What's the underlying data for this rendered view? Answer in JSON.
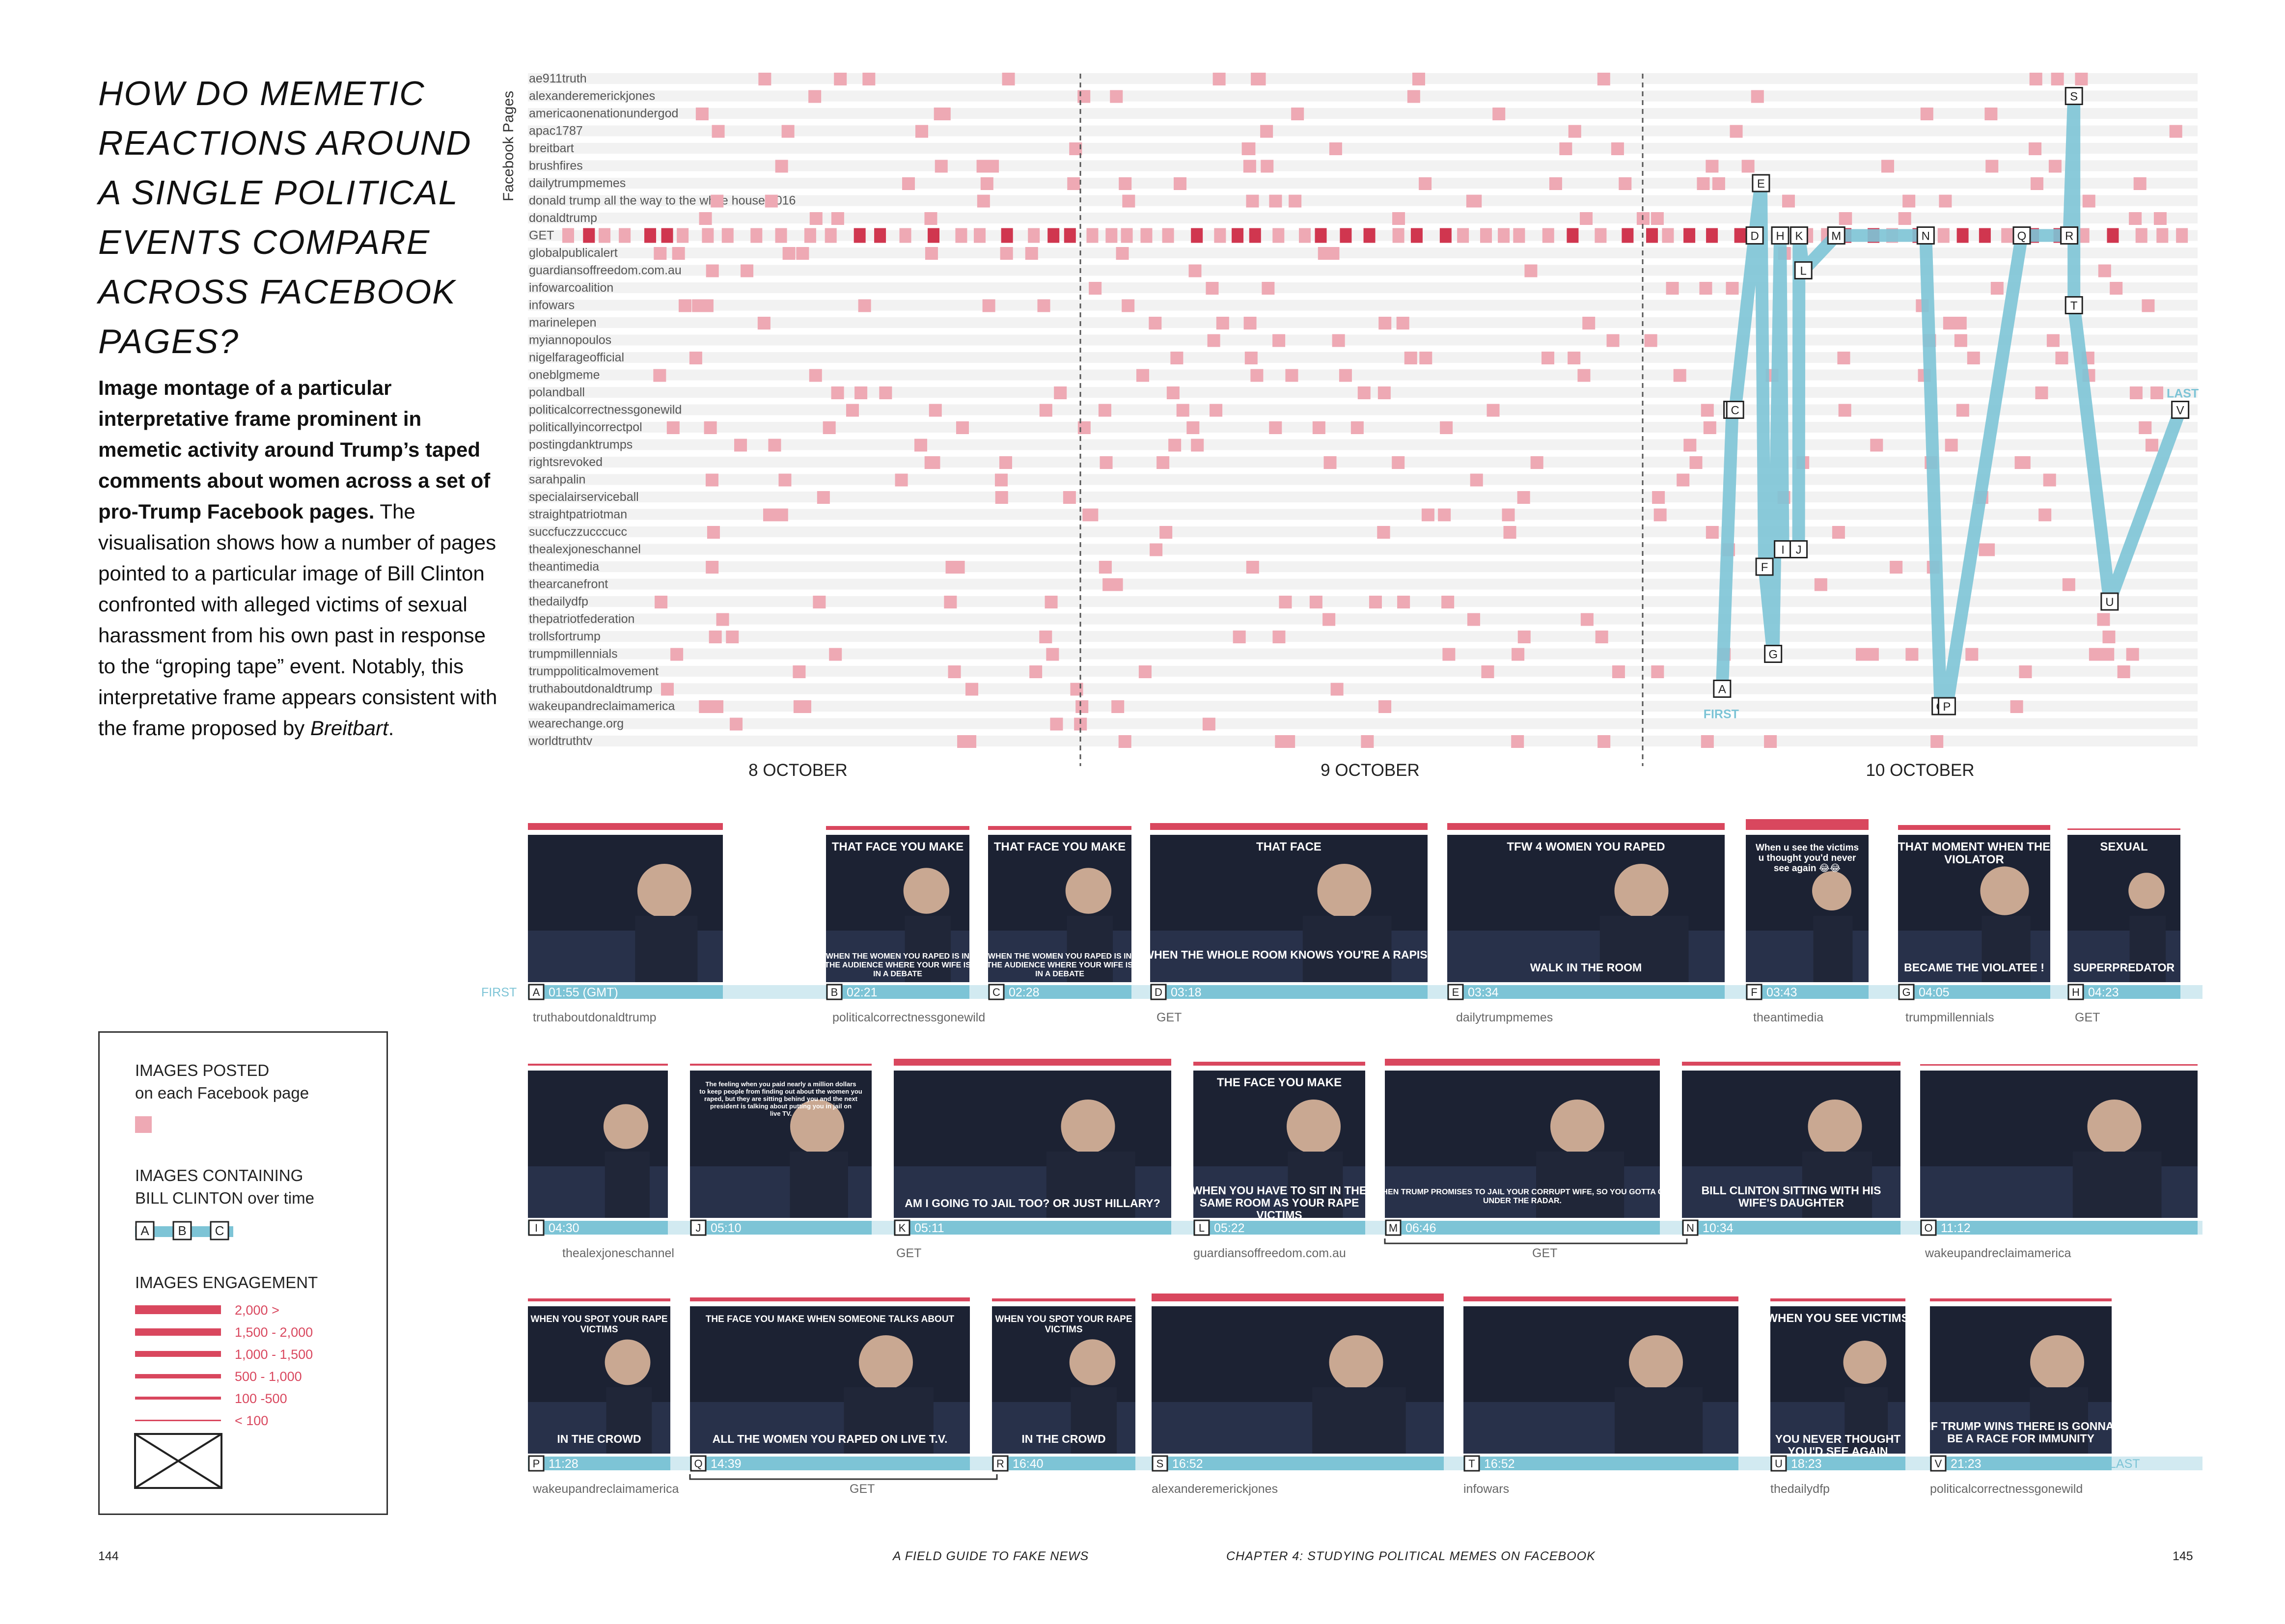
{
  "title": "HOW DO MEMETIC REACTIONS AROUND A SINGLE POLITICAL EVENTS COMPARE ACROSS FACEBOOK PAGES?",
  "description": {
    "bold": "Image montage of a particular interpretative frame prominent in memetic activity around Trump’s taped comments about women across a set of pro-Trump Facebook pages.",
    "text1": " The visualisation shows how a number of pages pointed to a particular image of Bill Clinton confronted with alleged victims of sexual harassment from his own past in response to the “groping tape” event. Notably, this interpretative frame appears consistent with the frame proposed by ",
    "italic": "Breitbart",
    "end": "."
  },
  "chart": {
    "y_axis_label": "Facebook Pages",
    "date_labels": [
      "8 OCTOBER",
      "9 OCTOBER",
      "10 OCTOBER"
    ],
    "first_label": "FIRST",
    "last_label": "LAST",
    "pages": [
      "ae911truth",
      "alexanderemerickjones",
      "americaonenationundergod",
      "apac1787",
      "breitbart",
      "brushfires",
      "dailytrumpmemes",
      "donald trump all the way to the white house 2016",
      "donaldtrump",
      "GET",
      "globalpublicalert",
      "guardiansoffreedom.com.au",
      "infowarcoalition",
      "infowars",
      "marinelepen",
      "myiannopoulos",
      "nigelfarageofficial",
      "oneblgmeme",
      "polandball",
      "politicalcorrectnessgonewild",
      "politicallyincorrectpol",
      "postingdanktrumps",
      "rightsrevoked",
      "sarahpalin",
      "specialairserviceball",
      "straightpatriotman",
      "succfuczzucccucc",
      "thealexjoneschannel",
      "theantimedia",
      "thearcanefront",
      "thedailydfp",
      "thepatriotfederation",
      "trollsfortrump",
      "trumpmillennials",
      "trumppoliticalmovement",
      "truthaboutdonaldtrump",
      "wakeupandreclaimamerica",
      "wearechange.org",
      "worldtruthtv"
    ],
    "markers": [
      {
        "id": "A",
        "page": "truthaboutdonaldtrump"
      },
      {
        "id": "B",
        "page": "politicalcorrectnessgonewild"
      },
      {
        "id": "C",
        "page": "politicalcorrectnessgonewild"
      },
      {
        "id": "D",
        "page": "GET"
      },
      {
        "id": "E",
        "page": "dailytrumpmemes"
      },
      {
        "id": "F",
        "page": "theantimedia"
      },
      {
        "id": "G",
        "page": "trumpmillennials"
      },
      {
        "id": "H",
        "page": "GET"
      },
      {
        "id": "I",
        "page": "thealexjoneschannel"
      },
      {
        "id": "J",
        "page": "thealexjoneschannel"
      },
      {
        "id": "K",
        "page": "GET"
      },
      {
        "id": "L",
        "page": "guardiansoffreedom.com.au"
      },
      {
        "id": "M",
        "page": "GET"
      },
      {
        "id": "N",
        "page": "GET"
      },
      {
        "id": "O",
        "page": "wakeupandreclaimamerica"
      },
      {
        "id": "P",
        "page": "wakeupandreclaimamerica"
      },
      {
        "id": "Q",
        "page": "GET"
      },
      {
        "id": "R",
        "page": "GET"
      },
      {
        "id": "S",
        "page": "alexanderemerickjones"
      },
      {
        "id": "T",
        "page": "infowars"
      },
      {
        "id": "U",
        "page": "thedailydfp"
      },
      {
        "id": "V",
        "page": "politicalcorrectnessgonewild"
      }
    ]
  },
  "montage": {
    "first_label": "FIRST",
    "last_label": "LAST",
    "rows": [
      {
        "images": [
          {
            "id": "A",
            "time": "01:55 (GMT)",
            "caption_top": "",
            "caption_bottom": ""
          },
          {
            "id": "B",
            "time": "02:21",
            "caption_top": "THAT FACE YOU MAKE",
            "caption_bottom": "WHEN THE WOMEN YOU RAPED IS IN THE AUDIENCE WHERE YOUR WIFE IS IN A DEBATE"
          },
          {
            "id": "C",
            "time": "02:28",
            "caption_top": "THAT FACE YOU MAKE",
            "caption_bottom": "WHEN THE WOMEN YOU RAPED IS IN THE AUDIENCE WHERE YOUR WIFE IS IN A DEBATE"
          },
          {
            "id": "D",
            "time": "03:18",
            "caption_top": "THAT FACE",
            "caption_bottom": "WHEN THE WHOLE ROOM KNOWS YOU'RE A RAPIST"
          },
          {
            "id": "E",
            "time": "03:34",
            "caption_top": "TFW 4 WOMEN YOU RAPED",
            "caption_bottom": "WALK IN THE ROOM"
          },
          {
            "id": "F",
            "time": "03:43",
            "caption_top": "When u see the victims u thought you'd never see again 😂😂",
            "caption_bottom": ""
          },
          {
            "id": "G",
            "time": "04:05",
            "caption_top": "THAT MOMENT WHEN THE VIOLATOR",
            "caption_bottom": "BECAME THE VIOLATEE !"
          },
          {
            "id": "H",
            "time": "04:23",
            "caption_top": "SEXUAL",
            "caption_bottom": "SUPERPREDATOR"
          }
        ],
        "sources": [
          "truthaboutdonaldtrump",
          "politicalcorrectnessgonewild",
          "GET",
          "dailytrumpmemes",
          "theantimedia",
          "trumpmillennials",
          "GET"
        ]
      },
      {
        "images": [
          {
            "id": "I",
            "time": "04:30",
            "caption_top": "",
            "caption_bottom": ""
          },
          {
            "id": "J",
            "time": "05:10",
            "caption_top": "The feeling when you paid nearly a million dollars to keep people from finding out about the women you raped, but they are sitting behind you and the next president is talking about putting you in jail on live TV.",
            "caption_bottom": ""
          },
          {
            "id": "K",
            "time": "05:11",
            "caption_top": "",
            "caption_bottom": "AM I GOING TO JAIL TOO? OR JUST HILLARY?"
          },
          {
            "id": "L",
            "time": "05:22",
            "caption_top": "THE FACE YOU MAKE",
            "caption_bottom": "WHEN YOU HAVE TO SIT IN THE SAME ROOM AS YOUR RAPE VICTIMS"
          },
          {
            "id": "M",
            "time": "06:46",
            "caption_top": "",
            "caption_bottom": "WHEN TRUMP PROMISES TO JAIL YOUR CORRUPT WIFE, SO YOU GOTTA GO UNDER THE RADAR."
          },
          {
            "id": "N",
            "time": "10:34",
            "caption_top": "",
            "caption_bottom": "BILL CLINTON SITTING WITH HIS WIFE'S DAUGHTER"
          },
          {
            "id": "O",
            "time": "11:12",
            "caption_top": "",
            "caption_bottom": ""
          }
        ],
        "sources": [
          "thealexjoneschannel",
          "GET",
          "guardiansoffreedom.com.au",
          "GET",
          "wakeupandreclaimamerica"
        ]
      },
      {
        "images": [
          {
            "id": "P",
            "time": "11:28",
            "caption_top": "WHEN YOU SPOT YOUR RAPE VICTIMS",
            "caption_bottom": "IN THE CROWD"
          },
          {
            "id": "Q",
            "time": "14:39",
            "caption_top": "THE FACE YOU MAKE WHEN SOMEONE TALKS ABOUT",
            "caption_bottom": "ALL THE WOMEN YOU RAPED ON LIVE T.V."
          },
          {
            "id": "R",
            "time": "16:40",
            "caption_top": "WHEN YOU SPOT YOUR RAPE VICTIMS",
            "caption_bottom": "IN THE CROWD"
          },
          {
            "id": "S",
            "time": "16:52",
            "caption_top": "",
            "caption_bottom": ""
          },
          {
            "id": "T",
            "time": "16:52",
            "caption_top": "",
            "caption_bottom": ""
          },
          {
            "id": "U",
            "time": "18:23",
            "caption_top": "WHEN YOU SEE VICTIMS",
            "caption_bottom": "YOU NEVER THOUGHT YOU'D SEE AGAIN"
          },
          {
            "id": "V",
            "time": "21:23",
            "caption_top": "",
            "caption_bottom": "IF TRUMP WINS THERE IS GONNA BE A RACE FOR IMMUNITY"
          }
        ],
        "sources": [
          "wakeupandreclaimamerica",
          "GET",
          "alexanderemerickjones",
          "infowars",
          "thedailydfp",
          "politicalcorrectnessgonewild"
        ]
      }
    ]
  },
  "legend": {
    "posted_title": "IMAGES POSTED",
    "posted_sub": "on each Facebook page",
    "containing_title": "IMAGES CONTAINING",
    "containing_sub": "BILL CLINTON over time",
    "containing_markers": [
      "A",
      "B",
      "C"
    ],
    "engagement_title": "IMAGES ENGAGEMENT",
    "engagement_levels": [
      "2,000 >",
      "1,500 - 2,000",
      "1,000 - 1,500",
      "500 - 1,000",
      "100 -500",
      "< 100"
    ],
    "colors": {
      "accent": "#d9475e",
      "posted": "#eea9b4",
      "path": "#7dc4d6",
      "row_bg": "#f2f2f2"
    }
  },
  "footer": {
    "left_page": "144",
    "left_title": "A FIELD GUIDE TO FAKE NEWS",
    "right_title": "CHAPTER 4: STUDYING POLITICAL MEMES ON FACEBOOK",
    "right_page": "145"
  }
}
